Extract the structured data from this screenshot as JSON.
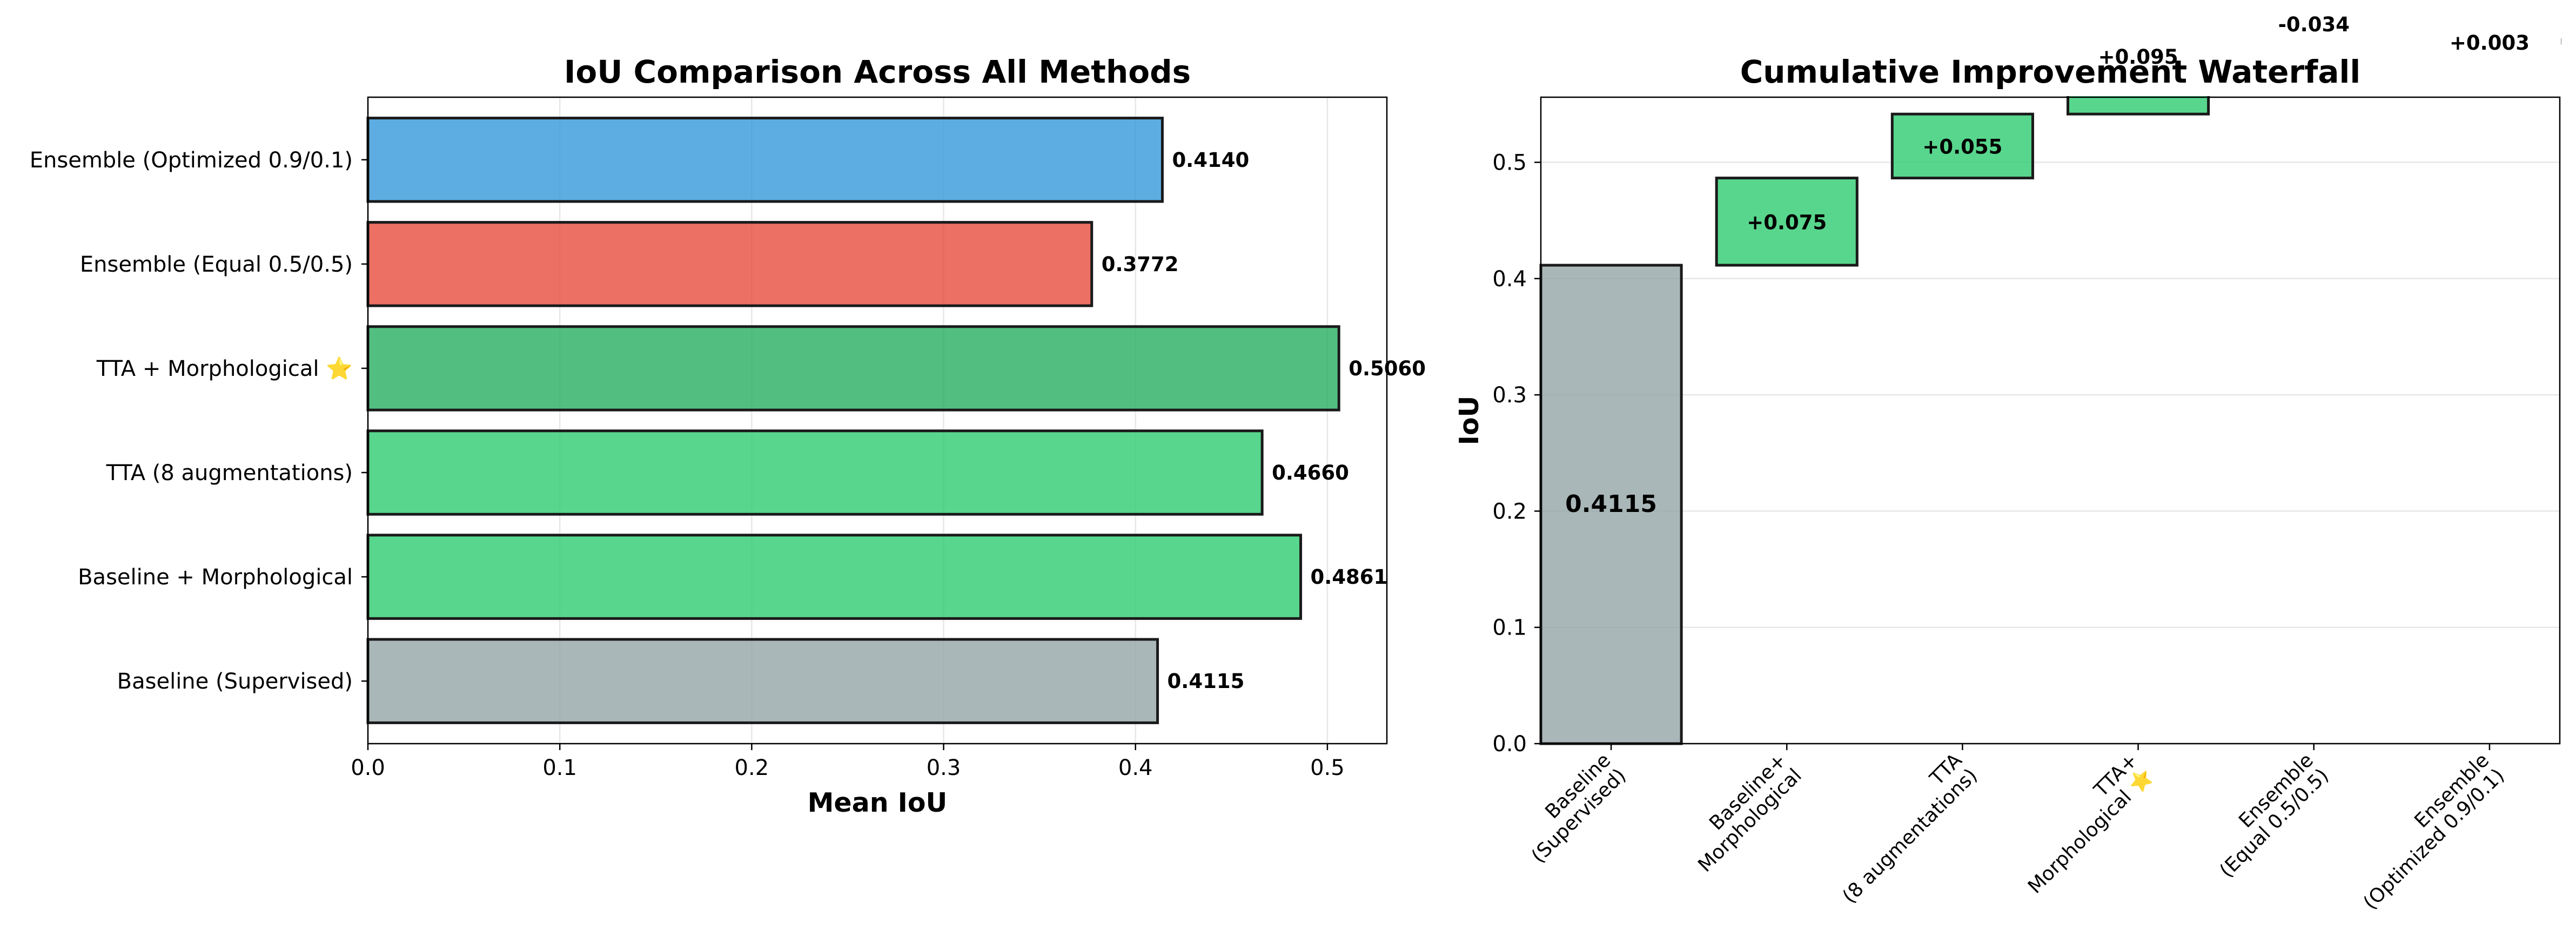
{
  "chart_data": [
    {
      "type": "bar",
      "orientation": "horizontal",
      "title": "IoU Comparison Across All Methods",
      "xlabel": "Mean IoU",
      "ylabel": "",
      "xlim": [
        0,
        0.531
      ],
      "xticks": [
        "0.0",
        "0.1",
        "0.2",
        "0.3",
        "0.4",
        "0.5"
      ],
      "grid": "x",
      "categories": [
        "Baseline (Supervised)",
        "Baseline + Morphological",
        "TTA (8 augmentations)",
        "TTA + Morphological ⭐",
        "Ensemble (Equal 0.5/0.5)",
        "Ensemble (Optimized 0.9/0.1)"
      ],
      "values": [
        0.4115,
        0.4861,
        0.466,
        0.506,
        0.3772,
        0.414
      ],
      "value_labels": [
        "0.4115",
        "0.4861",
        "0.4660",
        "0.5060",
        "0.3772",
        "0.4140"
      ],
      "colors": [
        "#95a5a6",
        "#2ecc71",
        "#2ecc71",
        "#27ae60",
        "#e74c3c",
        "#3498db"
      ]
    },
    {
      "type": "waterfall",
      "title": "Cumulative Improvement Waterfall",
      "xlabel": "",
      "ylabel": "IoU",
      "ylim": [
        0,
        0.556
      ],
      "yticks": [
        "0.0",
        "0.1",
        "0.2",
        "0.3",
        "0.4",
        "0.5"
      ],
      "grid": "y",
      "categories": [
        "Baseline\n(Supervised)",
        "Baseline+\nMorphological",
        "TTA\n(8 augmentations)",
        "TTA+\nMorphological ⭐",
        "Ensemble\n(Equal 0.5/0.5)",
        "Ensemble\n(Optimized 0.9/0.1)"
      ],
      "base_value": 0.4115,
      "deltas": [
        0.4115,
        0.075,
        0.055,
        0.095,
        -0.034,
        0.003
      ],
      "value_labels": [
        "0.4115",
        "+0.075",
        "+0.055",
        "+0.095",
        "-0.034",
        "+0.003"
      ],
      "colors": {
        "base": "#95a5a6",
        "positive": "#2ecc71",
        "negative": "#e74c3c"
      }
    }
  ]
}
